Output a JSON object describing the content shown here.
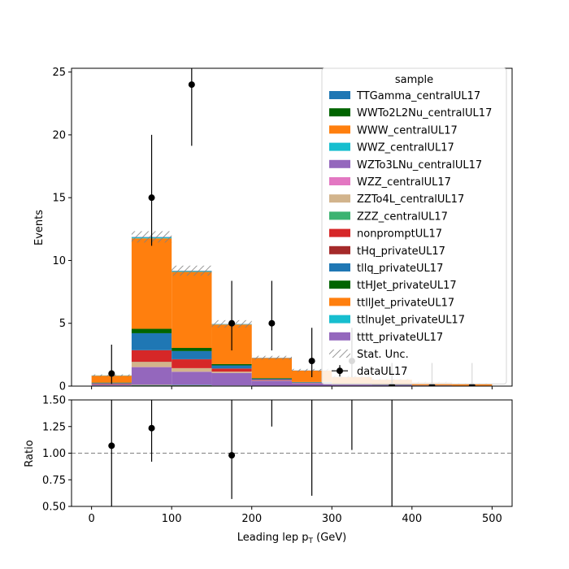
{
  "chart_data": [
    {
      "type": "bar",
      "stacked": true,
      "ylabel": "Events",
      "xlim": [
        -25,
        525
      ],
      "ylim": [
        0,
        25.3
      ],
      "yticks": [
        0,
        5,
        10,
        15,
        20,
        25
      ],
      "bin_edges": [
        0,
        50,
        100,
        150,
        200,
        250,
        300,
        350,
        400,
        450,
        500
      ],
      "legend_title": "sample",
      "legend_position": "upper right",
      "series": [
        {
          "name": "TTGamma_centralUL17",
          "color": "#1f77b4",
          "values": [
            0.02,
            0.05,
            0.04,
            0.02,
            0.01,
            0.01,
            0,
            0,
            0,
            0
          ]
        },
        {
          "name": "WWTo2L2Nu_centralUL17",
          "color": "#006400",
          "values": [
            0.01,
            0.02,
            0.02,
            0.01,
            0.01,
            0,
            0,
            0,
            0,
            0
          ]
        },
        {
          "name": "WWW_centralUL17",
          "color": "#ff7f0e",
          "values": [
            0.01,
            0.02,
            0.01,
            0.01,
            0,
            0,
            0,
            0,
            0,
            0
          ]
        },
        {
          "name": "WWZ_centralUL17",
          "color": "#17becf",
          "values": [
            0.01,
            0.02,
            0.02,
            0.01,
            0.01,
            0,
            0,
            0,
            0,
            0
          ]
        },
        {
          "name": "WZTo3LNu_centralUL17",
          "color": "#9467bd",
          "values": [
            0.08,
            1.4,
            1.05,
            1.0,
            0.4,
            0.22,
            0.12,
            0.1,
            0.05,
            0.04
          ]
        },
        {
          "name": "WZZ_centralUL17",
          "color": "#e377c2",
          "values": [
            0,
            0.01,
            0.01,
            0,
            0,
            0,
            0,
            0,
            0,
            0
          ]
        },
        {
          "name": "ZZTo4L_centralUL17",
          "color": "#d2b48c",
          "values": [
            0.03,
            0.4,
            0.28,
            0.1,
            0.03,
            0.02,
            0.01,
            0.01,
            0,
            0
          ]
        },
        {
          "name": "ZZZ_centralUL17",
          "color": "#3cb371",
          "values": [
            0,
            0.01,
            0,
            0,
            0,
            0,
            0,
            0,
            0,
            0
          ]
        },
        {
          "name": "nonpromptUL17",
          "color": "#d62728",
          "values": [
            0.05,
            0.92,
            0.7,
            0.25,
            0.05,
            0.02,
            0.01,
            0,
            0,
            0
          ]
        },
        {
          "name": "tHq_privateUL17",
          "color": "#a52a2a",
          "values": [
            0,
            0.01,
            0.01,
            0,
            0,
            0,
            0,
            0,
            0,
            0
          ]
        },
        {
          "name": "tllq_privateUL17",
          "color": "#1f77b4",
          "values": [
            0.05,
            1.35,
            0.65,
            0.25,
            0.07,
            0.04,
            0.02,
            0.01,
            0.01,
            0
          ]
        },
        {
          "name": "ttHJet_privateUL17",
          "color": "#006400",
          "values": [
            0.02,
            0.35,
            0.25,
            0.1,
            0.05,
            0.02,
            0.01,
            0.01,
            0,
            0
          ]
        },
        {
          "name": "ttllJet_privateUL17",
          "color": "#ff7f0e",
          "values": [
            0.55,
            7.2,
            6.05,
            3.15,
            1.6,
            0.9,
            0.55,
            0.38,
            0.22,
            0.15
          ]
        },
        {
          "name": "ttlnuJet_privateUL17",
          "color": "#17becf",
          "values": [
            0.02,
            0.1,
            0.08,
            0.04,
            0.02,
            0.01,
            0.01,
            0,
            0,
            0
          ]
        },
        {
          "name": "tttt_privateUL17",
          "color": "#9467bd",
          "values": [
            0,
            0.02,
            0.02,
            0.01,
            0.01,
            0.01,
            0,
            0,
            0,
            0
          ]
        }
      ],
      "stat_unc_label": "Stat. Unc.",
      "stat_unc": [
        0.08,
        0.45,
        0.4,
        0.3,
        0.15,
        0.12,
        0.1,
        0.08,
        0.07,
        0.06
      ],
      "data": {
        "name": "dataUL17",
        "x": [
          25,
          75,
          125,
          175,
          225,
          275,
          325,
          375,
          425,
          475
        ],
        "y": [
          1,
          15,
          24,
          5,
          5,
          2,
          2,
          0,
          0,
          0
        ],
        "yerr_low": [
          0.83,
          3.83,
          4.87,
          2.16,
          2.16,
          1.29,
          1.29,
          0,
          0,
          0
        ],
        "yerr_high": [
          2.3,
          5.0,
          5.9,
          3.38,
          3.38,
          2.64,
          2.64,
          1.84,
          1.84,
          1.84
        ]
      }
    },
    {
      "type": "scatter",
      "xlabel": "Leading lep p",
      "xlabel_sub": "T",
      "xlabel_unit": " (GeV)",
      "ylabel": "Ratio",
      "xlim": [
        -25,
        525
      ],
      "ylim": [
        0.5,
        1.5
      ],
      "xticks": [
        0,
        100,
        200,
        300,
        400,
        500
      ],
      "yticks": [
        "0.50",
        "0.75",
        "1.00",
        "1.25",
        "1.50"
      ],
      "reference_line": 1.0,
      "points": [
        {
          "x": 25,
          "y": 1.07,
          "lo": 0.0,
          "hi": 1.6
        },
        {
          "x": 75,
          "y": 1.235,
          "lo": 0.92,
          "hi": 1.6
        },
        {
          "x": 175,
          "y": 0.98,
          "lo": 0.57,
          "hi": 1.6
        },
        {
          "x": 225,
          "y": null,
          "lo": 1.25,
          "hi": 1.6
        },
        {
          "x": 275,
          "y": null,
          "lo": 0.6,
          "hi": 1.6
        },
        {
          "x": 325,
          "y": null,
          "lo": 1.03,
          "hi": 1.6
        },
        {
          "x": 375,
          "y": null,
          "lo": 0.0,
          "hi": 1.6
        }
      ]
    }
  ]
}
